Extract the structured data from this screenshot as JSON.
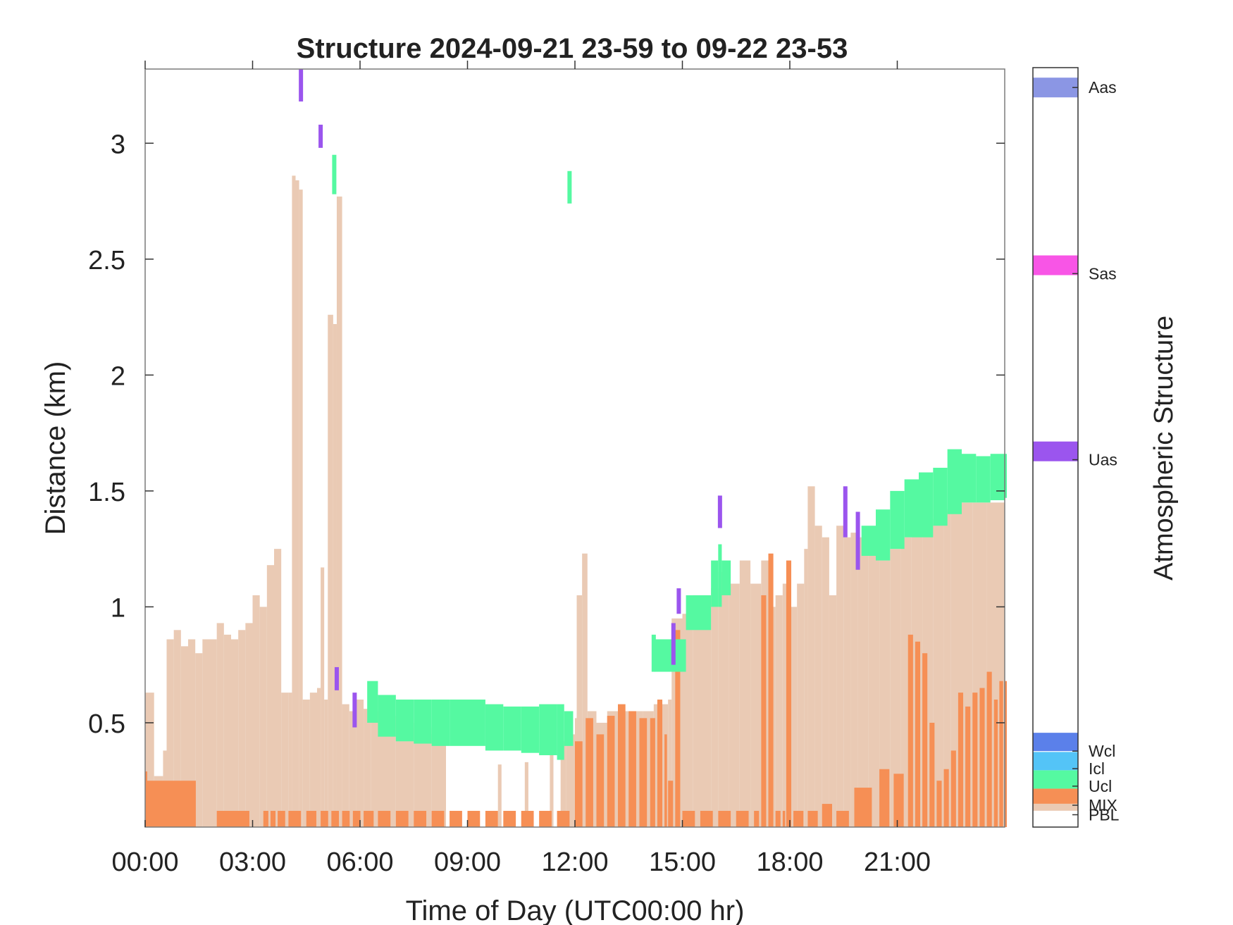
{
  "chart_data": {
    "type": "heatmap",
    "title": "Structure 2024-09-21 23-59 to 09-22 23-53",
    "xlabel": "Time of Day (UTC00:00 hr)",
    "ylabel": "Distance (km)",
    "colorbar_label": "Atmospheric Structure",
    "xlim": [
      0,
      24
    ],
    "ylim": [
      0.05,
      3.32
    ],
    "x_ticks": [
      0,
      3,
      6,
      9,
      12,
      15,
      18,
      21
    ],
    "x_tick_labels": [
      "00:00",
      "03:00",
      "06:00",
      "09:00",
      "12:00",
      "15:00",
      "18:00",
      "21:00"
    ],
    "y_ticks": [
      0.5,
      1,
      1.5,
      2,
      2.5,
      3
    ],
    "y_tick_labels": [
      "0.5",
      "1",
      "1.5",
      "2",
      "2.5",
      "3"
    ],
    "grid": false,
    "legend": [
      {
        "label": "Aas",
        "color": "#8b96e4"
      },
      {
        "label": "Sas",
        "color": "#f855e6"
      },
      {
        "label": "Uas",
        "color": "#9b55ee"
      },
      {
        "label": "Wcl",
        "color": "#5b80ea"
      },
      {
        "label": "Icl",
        "color": "#54c4f7"
      },
      {
        "label": "Ucl",
        "color": "#55f9a1"
      },
      {
        "label": "MIX",
        "color": "#f68f55"
      },
      {
        "label": "PBL",
        "color": "#eacab4"
      }
    ],
    "pbl_top": [
      [
        0,
        0.63
      ],
      [
        0.25,
        0.27
      ],
      [
        0.5,
        0.38
      ],
      [
        0.6,
        0.86
      ],
      [
        0.8,
        0.9
      ],
      [
        1.0,
        0.83
      ],
      [
        1.2,
        0.86
      ],
      [
        1.4,
        0.8
      ],
      [
        1.6,
        0.86
      ],
      [
        1.8,
        0.86
      ],
      [
        2.0,
        0.93
      ],
      [
        2.2,
        0.88
      ],
      [
        2.4,
        0.86
      ],
      [
        2.6,
        0.9
      ],
      [
        2.8,
        0.93
      ],
      [
        3.0,
        1.05
      ],
      [
        3.2,
        1.0
      ],
      [
        3.4,
        1.18
      ],
      [
        3.6,
        1.25
      ],
      [
        3.8,
        0.63
      ],
      [
        4.0,
        0.63
      ],
      [
        4.1,
        2.86
      ],
      [
        4.2,
        2.84
      ],
      [
        4.3,
        2.8
      ],
      [
        4.4,
        0.6
      ],
      [
        4.6,
        0.63
      ],
      [
        4.8,
        0.65
      ],
      [
        4.9,
        1.17
      ],
      [
        5.0,
        0.6
      ],
      [
        5.1,
        2.26
      ],
      [
        5.25,
        2.22
      ],
      [
        5.35,
        2.77
      ],
      [
        5.5,
        0.58
      ],
      [
        5.7,
        0.55
      ],
      [
        5.9,
        0.6
      ],
      [
        6.1,
        0.56
      ],
      [
        6.3,
        0.55
      ],
      [
        6.6,
        0.53
      ],
      [
        7.0,
        0.5
      ],
      [
        7.5,
        0.48
      ],
      [
        8.0,
        0.45
      ],
      [
        8.4,
        0.43
      ],
      [
        8.4,
        0.05
      ],
      [
        9.85,
        0.32
      ],
      [
        9.95,
        0.05
      ],
      [
        10.6,
        0.33
      ],
      [
        10.7,
        0.05
      ],
      [
        11.3,
        0.4
      ],
      [
        11.4,
        0.05
      ],
      [
        11.6,
        0.42
      ],
      [
        11.75,
        0.45
      ],
      [
        12.0,
        0.52
      ],
      [
        12.05,
        1.05
      ],
      [
        12.2,
        1.23
      ],
      [
        12.35,
        0.55
      ],
      [
        12.6,
        0.5
      ],
      [
        12.9,
        0.55
      ],
      [
        13.4,
        0.55
      ],
      [
        13.9,
        0.55
      ],
      [
        14.2,
        0.58
      ],
      [
        14.6,
        0.6
      ],
      [
        14.7,
        0.95
      ],
      [
        15.0,
        0.97
      ],
      [
        15.3,
        1.05
      ],
      [
        15.6,
        1.05
      ],
      [
        15.8,
        1.08
      ],
      [
        16.0,
        1.15
      ],
      [
        16.3,
        1.1
      ],
      [
        16.6,
        1.2
      ],
      [
        16.9,
        1.1
      ],
      [
        17.2,
        1.2
      ],
      [
        17.4,
        1.0
      ],
      [
        17.6,
        1.05
      ],
      [
        17.8,
        1.1
      ],
      [
        18.0,
        1.0
      ],
      [
        18.2,
        1.1
      ],
      [
        18.4,
        1.25
      ],
      [
        18.5,
        1.52
      ],
      [
        18.7,
        1.35
      ],
      [
        18.9,
        1.3
      ],
      [
        19.1,
        1.05
      ],
      [
        19.3,
        1.35
      ],
      [
        19.5,
        1.3
      ],
      [
        19.7,
        1.32
      ],
      [
        19.9,
        1.3
      ],
      [
        20.2,
        1.25
      ],
      [
        20.5,
        1.2
      ],
      [
        20.8,
        1.25
      ],
      [
        21.1,
        1.3
      ],
      [
        21.4,
        1.32
      ],
      [
        21.7,
        1.35
      ],
      [
        22.0,
        1.38
      ],
      [
        22.2,
        1.45
      ],
      [
        22.3,
        1.42
      ],
      [
        22.5,
        1.46
      ],
      [
        22.8,
        1.45
      ],
      [
        23.1,
        1.45
      ],
      [
        23.5,
        1.45
      ],
      [
        24.0,
        1.47
      ]
    ],
    "mix_bars": [
      [
        0.0,
        0.29
      ],
      [
        0.05,
        0.25
      ],
      [
        2.0,
        0.12
      ],
      [
        3.3,
        0.12
      ],
      [
        3.5,
        0.12
      ],
      [
        3.7,
        0.12
      ],
      [
        4.0,
        0.12
      ],
      [
        4.5,
        0.12
      ],
      [
        4.9,
        0.12
      ],
      [
        5.2,
        0.12
      ],
      [
        5.5,
        0.12
      ],
      [
        5.8,
        0.12
      ],
      [
        6.1,
        0.12
      ],
      [
        6.5,
        0.12
      ],
      [
        7.0,
        0.12
      ],
      [
        7.5,
        0.12
      ],
      [
        8.0,
        0.12
      ],
      [
        8.5,
        0.12
      ],
      [
        9.0,
        0.12
      ],
      [
        9.5,
        0.12
      ],
      [
        10.0,
        0.12
      ],
      [
        10.5,
        0.12
      ],
      [
        11.0,
        0.12
      ],
      [
        11.5,
        0.12
      ],
      [
        12.0,
        0.42
      ],
      [
        12.3,
        0.52
      ],
      [
        12.6,
        0.45
      ],
      [
        12.9,
        0.53
      ],
      [
        13.2,
        0.58
      ],
      [
        13.5,
        0.55
      ],
      [
        13.8,
        0.52
      ],
      [
        14.1,
        0.52
      ],
      [
        14.3,
        0.6
      ],
      [
        14.5,
        0.45
      ],
      [
        14.6,
        0.25
      ],
      [
        14.8,
        0.9
      ],
      [
        15.0,
        0.12
      ],
      [
        15.5,
        0.12
      ],
      [
        16.0,
        0.12
      ],
      [
        16.5,
        0.12
      ],
      [
        17.0,
        0.12
      ],
      [
        17.2,
        1.05
      ],
      [
        17.4,
        1.23
      ],
      [
        17.6,
        0.12
      ],
      [
        17.8,
        0.12
      ],
      [
        17.9,
        1.2
      ],
      [
        18.1,
        0.12
      ],
      [
        18.5,
        0.12
      ],
      [
        18.9,
        0.15
      ],
      [
        19.3,
        0.12
      ],
      [
        19.8,
        0.22
      ],
      [
        20.5,
        0.3
      ],
      [
        20.9,
        0.28
      ],
      [
        21.3,
        0.88
      ],
      [
        21.5,
        0.85
      ],
      [
        21.7,
        0.8
      ],
      [
        21.9,
        0.5
      ],
      [
        22.1,
        0.25
      ],
      [
        22.3,
        0.3
      ],
      [
        22.5,
        0.38
      ],
      [
        22.7,
        0.63
      ],
      [
        22.9,
        0.57
      ],
      [
        23.1,
        0.63
      ],
      [
        23.3,
        0.65
      ],
      [
        23.5,
        0.72
      ],
      [
        23.7,
        0.6
      ],
      [
        23.85,
        0.68
      ],
      [
        24.0,
        0.68
      ]
    ],
    "ucl_band": [
      [
        6.2,
        0.68,
        0.5
      ],
      [
        6.5,
        0.62,
        0.44
      ],
      [
        7.0,
        0.6,
        0.42
      ],
      [
        7.5,
        0.6,
        0.41
      ],
      [
        8.0,
        0.6,
        0.4
      ],
      [
        8.5,
        0.6,
        0.4
      ],
      [
        9.0,
        0.6,
        0.4
      ],
      [
        9.5,
        0.58,
        0.38
      ],
      [
        10.0,
        0.57,
        0.38
      ],
      [
        10.5,
        0.57,
        0.37
      ],
      [
        11.0,
        0.58,
        0.36
      ],
      [
        11.5,
        0.58,
        0.34
      ],
      [
        11.7,
        0.55,
        0.4
      ],
      [
        14.2,
        0.86,
        0.72
      ],
      [
        15.1,
        1.05,
        0.9
      ],
      [
        15.8,
        1.2,
        1.0
      ],
      [
        16.0,
        1.27,
        1.0
      ],
      [
        16.1,
        1.2,
        1.05
      ],
      [
        20.0,
        1.35,
        1.22
      ],
      [
        20.4,
        1.42,
        1.2
      ],
      [
        20.8,
        1.5,
        1.25
      ],
      [
        21.2,
        1.55,
        1.3
      ],
      [
        21.6,
        1.58,
        1.3
      ],
      [
        22.0,
        1.6,
        1.35
      ],
      [
        22.4,
        1.68,
        1.4
      ],
      [
        22.8,
        1.66,
        1.45
      ],
      [
        23.2,
        1.65,
        1.45
      ],
      [
        23.6,
        1.66,
        1.46
      ],
      [
        24.0,
        1.66,
        1.47
      ]
    ],
    "ucl_segments": [
      [
        5.28,
        2.95,
        2.78
      ],
      [
        11.85,
        2.88,
        2.74
      ],
      [
        14.2,
        0.88,
        0.72
      ]
    ],
    "uas_segments": [
      [
        4.35,
        3.32,
        3.18
      ],
      [
        4.9,
        3.08,
        2.98
      ],
      [
        5.35,
        0.74,
        0.64
      ],
      [
        5.85,
        0.63,
        0.48
      ],
      [
        14.75,
        0.93,
        0.75
      ],
      [
        14.9,
        1.08,
        0.97
      ],
      [
        16.05,
        1.48,
        1.34
      ],
      [
        19.55,
        1.52,
        1.3
      ],
      [
        19.9,
        1.41,
        1.16
      ]
    ]
  }
}
